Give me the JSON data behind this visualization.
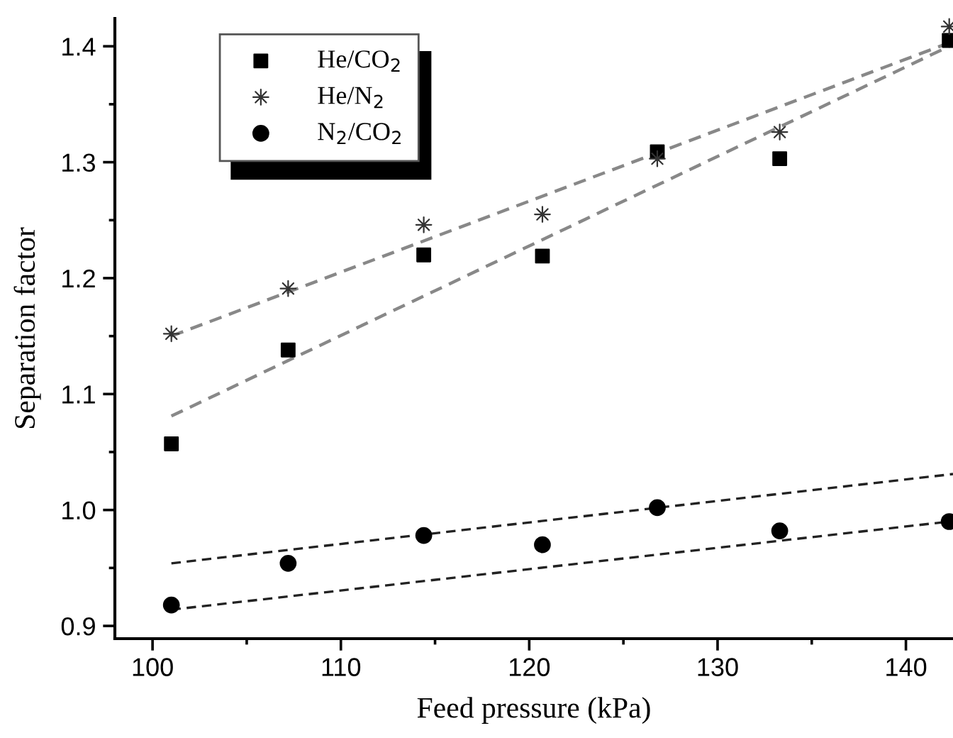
{
  "chart_data": {
    "type": "scatter",
    "xlabel": "Feed pressure (kPa)",
    "ylabel": "Separation factor",
    "xlim": [
      98,
      142.5
    ],
    "ylim": [
      0.889,
      1.424
    ],
    "xticks": [
      100,
      110,
      120,
      130,
      140
    ],
    "yticks": [
      0.9,
      {
        "value": 1,
        "label": "1.0"
      },
      1.1,
      1.2,
      1.3,
      1.4
    ],
    "grid": false,
    "legend": "top left",
    "series": [
      {
        "name": "He/CO$_{2}$",
        "color": "#000000",
        "marker": "square",
        "x": [
          101,
          107.2,
          114.4,
          120.7,
          126.8,
          133.3,
          142.3
        ],
        "values": [
          1.057,
          1.138,
          1.22,
          1.219,
          1.309,
          1.303,
          1.405
        ]
      },
      {
        "name": "He/N$_{2}$",
        "color": "#333333",
        "marker": "star",
        "x": [
          101,
          107.2,
          114.4,
          120.7,
          126.8,
          133.3,
          142.3
        ],
        "values": [
          1.152,
          1.191,
          1.246,
          1.255,
          1.303,
          1.326,
          1.417
        ]
      },
      {
        "name": "N$_{2}$/CO$_{2}$",
        "color": "#000000",
        "marker": "circle",
        "x": [
          101,
          107.2,
          114.4,
          120.7,
          126.8,
          133.3,
          142.3
        ],
        "values": [
          0.918,
          0.954,
          0.978,
          0.97,
          1.002,
          0.982,
          0.99
        ]
      },
      {
        "type": "line",
        "color": "#888888",
        "line_style": "dashed",
        "x": [
          101,
          142.3
        ],
        "values": [
          1.15,
          1.403
        ]
      },
      {
        "type": "line",
        "color": "#888888",
        "line_style": "dashed",
        "x": [
          101,
          142.3
        ],
        "values": [
          1.081,
          1.4
        ]
      },
      {
        "type": "line",
        "color": "#222222",
        "line_style": "dashed",
        "x": [
          101,
          142.5
        ],
        "values": [
          0.954,
          1.031
        ]
      },
      {
        "type": "line",
        "color": "#222222",
        "line_style": "dashed",
        "x": [
          101,
          142.3
        ],
        "values": [
          0.914,
          0.99
        ]
      }
    ]
  }
}
